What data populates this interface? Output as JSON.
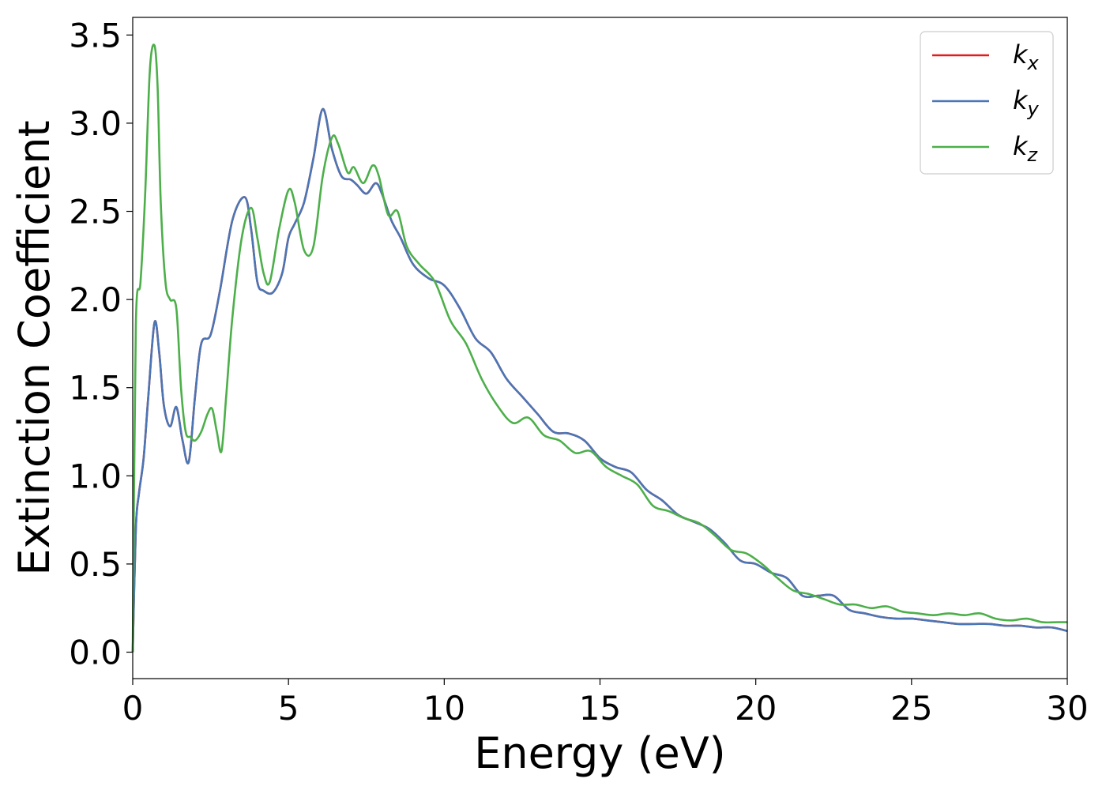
{
  "chart_data": {
    "type": "line",
    "title": "",
    "xlabel": "Energy (eV)",
    "ylabel": "Extinction Coefficient",
    "xlim": [
      0,
      30
    ],
    "ylim": [
      -0.15,
      3.6
    ],
    "xticks": [
      0,
      5,
      10,
      15,
      20,
      25,
      30
    ],
    "xtick_labels": [
      "0",
      "5",
      "10",
      "15",
      "20",
      "25",
      "30"
    ],
    "yticks": [
      0.0,
      0.5,
      1.0,
      1.5,
      2.0,
      2.5,
      3.0,
      3.5
    ],
    "ytick_labels": [
      "0.0",
      "0.5",
      "1.0",
      "1.5",
      "2.0",
      "2.5",
      "3.0",
      "3.5"
    ],
    "grid": false,
    "legend_position": "top-right",
    "series": [
      {
        "name": "k_x",
        "label_base": "k",
        "label_sub": "x",
        "color": "#e41a1c",
        "x": [
          0,
          0.1,
          0.2,
          0.35,
          0.5,
          0.7,
          0.85,
          1.0,
          1.2,
          1.4,
          1.6,
          1.8,
          2.0,
          2.2,
          2.5,
          2.8,
          3.2,
          3.6,
          3.8,
          4.0,
          4.2,
          4.5,
          4.8,
          5.0,
          5.2,
          5.5,
          5.8,
          6.1,
          6.4,
          6.7,
          7.0,
          7.2,
          7.5,
          7.8,
          8.0,
          8.3,
          8.6,
          9.0,
          9.5,
          10.0,
          10.5,
          11.0,
          11.5,
          12.0,
          12.5,
          13.0,
          13.5,
          14.0,
          14.5,
          15.0,
          15.5,
          16.0,
          16.5,
          17.0,
          17.5,
          18.0,
          18.5,
          19.0,
          19.5,
          20.0,
          20.5,
          21.0,
          21.5,
          22.0,
          22.5,
          23.0,
          23.5,
          24.0,
          24.5,
          25.0,
          25.5,
          26.0,
          26.5,
          27.0,
          27.5,
          28.0,
          28.5,
          29.0,
          29.5,
          30.0
        ],
        "y": [
          0.0,
          0.7,
          0.9,
          1.1,
          1.45,
          1.87,
          1.7,
          1.4,
          1.28,
          1.39,
          1.2,
          1.08,
          1.45,
          1.75,
          1.8,
          2.05,
          2.45,
          2.58,
          2.4,
          2.1,
          2.05,
          2.04,
          2.15,
          2.35,
          2.43,
          2.55,
          2.8,
          3.08,
          2.85,
          2.7,
          2.68,
          2.65,
          2.6,
          2.66,
          2.6,
          2.45,
          2.35,
          2.2,
          2.12,
          2.08,
          1.95,
          1.78,
          1.7,
          1.55,
          1.45,
          1.35,
          1.25,
          1.24,
          1.2,
          1.1,
          1.05,
          1.02,
          0.92,
          0.86,
          0.78,
          0.74,
          0.7,
          0.62,
          0.52,
          0.5,
          0.45,
          0.42,
          0.32,
          0.32,
          0.32,
          0.24,
          0.22,
          0.2,
          0.19,
          0.19,
          0.18,
          0.17,
          0.16,
          0.16,
          0.16,
          0.15,
          0.15,
          0.14,
          0.14,
          0.12
        ]
      },
      {
        "name": "k_y",
        "label_base": "k",
        "label_sub": "y",
        "color": "#4a76b5",
        "x": [
          0,
          0.1,
          0.2,
          0.35,
          0.5,
          0.7,
          0.85,
          1.0,
          1.2,
          1.4,
          1.6,
          1.8,
          2.0,
          2.2,
          2.5,
          2.8,
          3.2,
          3.6,
          3.8,
          4.0,
          4.2,
          4.5,
          4.8,
          5.0,
          5.2,
          5.5,
          5.8,
          6.1,
          6.4,
          6.7,
          7.0,
          7.2,
          7.5,
          7.8,
          8.0,
          8.3,
          8.6,
          9.0,
          9.5,
          10.0,
          10.5,
          11.0,
          11.5,
          12.0,
          12.5,
          13.0,
          13.5,
          14.0,
          14.5,
          15.0,
          15.5,
          16.0,
          16.5,
          17.0,
          17.5,
          18.0,
          18.5,
          19.0,
          19.5,
          20.0,
          20.5,
          21.0,
          21.5,
          22.0,
          22.5,
          23.0,
          23.5,
          24.0,
          24.5,
          25.0,
          25.5,
          26.0,
          26.5,
          27.0,
          27.5,
          28.0,
          28.5,
          29.0,
          29.5,
          30.0
        ],
        "y": [
          0.0,
          0.7,
          0.9,
          1.1,
          1.45,
          1.87,
          1.7,
          1.4,
          1.28,
          1.39,
          1.2,
          1.08,
          1.45,
          1.75,
          1.8,
          2.05,
          2.45,
          2.58,
          2.4,
          2.1,
          2.05,
          2.04,
          2.15,
          2.35,
          2.43,
          2.55,
          2.8,
          3.08,
          2.85,
          2.7,
          2.68,
          2.65,
          2.6,
          2.66,
          2.6,
          2.45,
          2.35,
          2.2,
          2.12,
          2.08,
          1.95,
          1.78,
          1.7,
          1.55,
          1.45,
          1.35,
          1.25,
          1.24,
          1.2,
          1.1,
          1.05,
          1.02,
          0.92,
          0.86,
          0.78,
          0.74,
          0.7,
          0.62,
          0.52,
          0.5,
          0.45,
          0.42,
          0.32,
          0.32,
          0.32,
          0.24,
          0.22,
          0.2,
          0.19,
          0.19,
          0.18,
          0.17,
          0.16,
          0.16,
          0.16,
          0.15,
          0.15,
          0.14,
          0.14,
          0.12
        ]
      },
      {
        "name": "k_z",
        "label_base": "k",
        "label_sub": "z",
        "color": "#4daf4a",
        "x": [
          0,
          0.1,
          0.25,
          0.4,
          0.55,
          0.7,
          0.8,
          0.9,
          1.05,
          1.2,
          1.4,
          1.55,
          1.7,
          1.85,
          2.0,
          2.2,
          2.4,
          2.55,
          2.7,
          2.85,
          3.0,
          3.2,
          3.5,
          3.8,
          4.0,
          4.2,
          4.4,
          4.7,
          5.0,
          5.2,
          5.5,
          5.8,
          6.1,
          6.4,
          6.6,
          6.9,
          7.1,
          7.4,
          7.7,
          7.9,
          8.2,
          8.5,
          8.8,
          9.2,
          9.7,
          10.2,
          10.7,
          11.2,
          11.7,
          12.2,
          12.7,
          13.2,
          13.7,
          14.2,
          14.7,
          15.2,
          15.7,
          16.2,
          16.7,
          17.2,
          17.7,
          18.2,
          18.7,
          19.2,
          19.7,
          20.2,
          20.7,
          21.2,
          21.7,
          22.2,
          22.7,
          23.2,
          23.7,
          24.2,
          24.7,
          25.2,
          25.7,
          26.2,
          26.7,
          27.2,
          27.7,
          28.2,
          28.7,
          29.2,
          29.7,
          30.0
        ],
        "y": [
          0.0,
          1.85,
          2.1,
          2.6,
          3.3,
          3.44,
          3.2,
          2.55,
          2.1,
          2.0,
          1.95,
          1.5,
          1.25,
          1.22,
          1.2,
          1.25,
          1.35,
          1.38,
          1.25,
          1.14,
          1.45,
          1.9,
          2.35,
          2.52,
          2.35,
          2.15,
          2.1,
          2.4,
          2.62,
          2.55,
          2.28,
          2.3,
          2.7,
          2.92,
          2.88,
          2.72,
          2.75,
          2.66,
          2.76,
          2.7,
          2.48,
          2.5,
          2.3,
          2.2,
          2.1,
          1.88,
          1.75,
          1.55,
          1.4,
          1.3,
          1.33,
          1.23,
          1.2,
          1.13,
          1.14,
          1.05,
          1.0,
          0.95,
          0.83,
          0.8,
          0.76,
          0.73,
          0.66,
          0.58,
          0.56,
          0.5,
          0.42,
          0.35,
          0.33,
          0.3,
          0.27,
          0.27,
          0.25,
          0.26,
          0.23,
          0.22,
          0.21,
          0.22,
          0.21,
          0.22,
          0.19,
          0.18,
          0.19,
          0.17,
          0.17,
          0.17
        ]
      }
    ]
  }
}
